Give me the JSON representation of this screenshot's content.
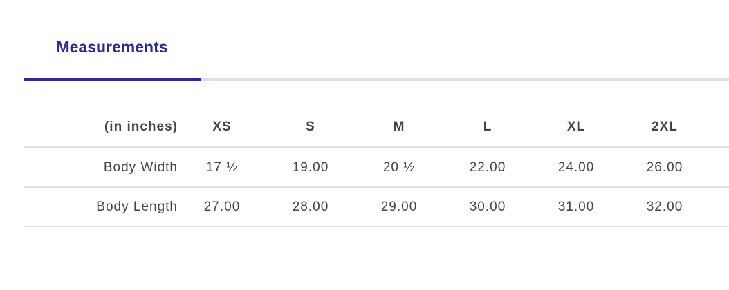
{
  "tabs": [
    {
      "label": "Measurements",
      "active": true
    }
  ],
  "colors": {
    "accent": "#2a2a96",
    "text": "#444444",
    "border": "#e0e0e3"
  },
  "table": {
    "unit_label": "(in inches)",
    "sizes": [
      "XS",
      "S",
      "M",
      "L",
      "XL",
      "2XL"
    ],
    "rows": [
      {
        "label": "Body Width",
        "values": [
          "17 ½",
          "19.00",
          "20 ½",
          "22.00",
          "24.00",
          "26.00"
        ]
      },
      {
        "label": "Body Length",
        "values": [
          "27.00",
          "28.00",
          "29.00",
          "30.00",
          "31.00",
          "32.00"
        ]
      }
    ]
  }
}
